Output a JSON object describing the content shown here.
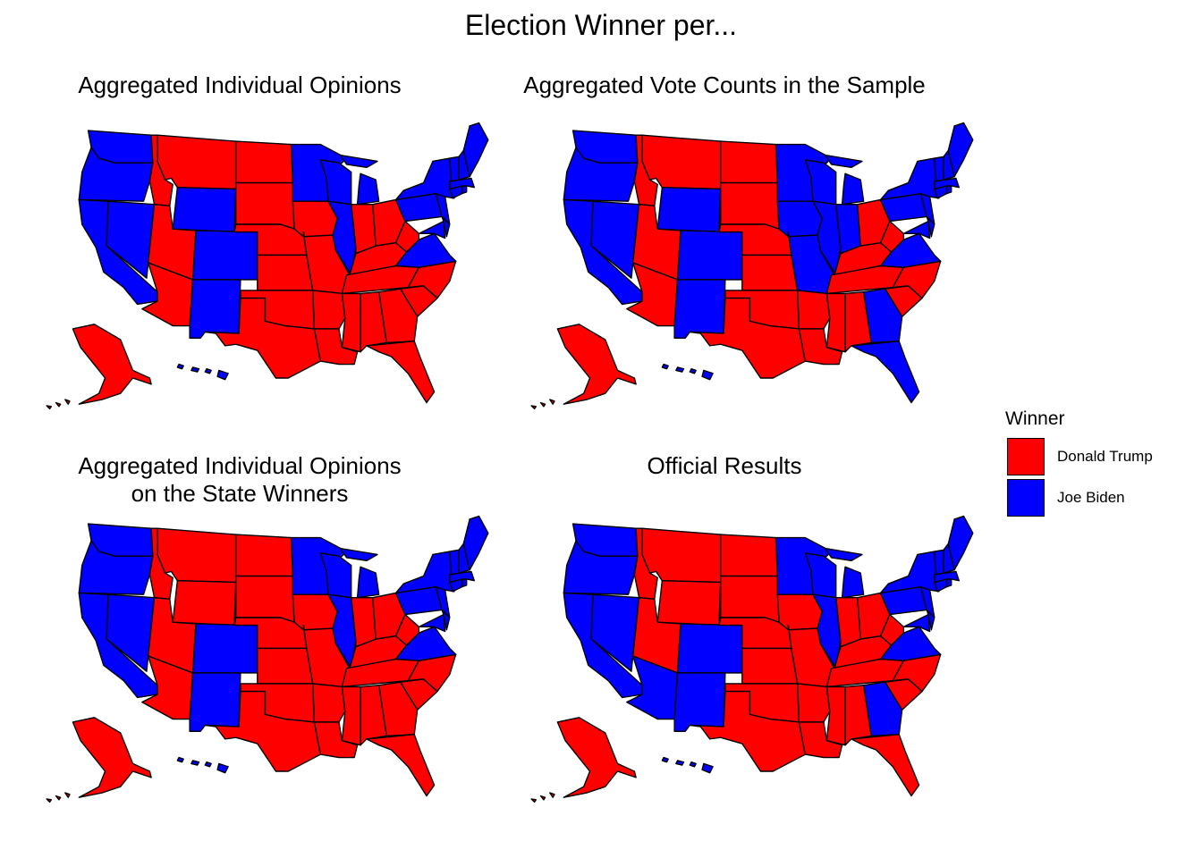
{
  "title": "Election Winner per...",
  "colors": {
    "Donald Trump": "#ff0000",
    "Joe Biden": "#0000ff"
  },
  "legend": {
    "title": "Winner",
    "items": [
      {
        "label": "Donald Trump",
        "color": "#ff0000"
      },
      {
        "label": "Joe Biden",
        "color": "#0000ff"
      }
    ]
  },
  "panels": [
    {
      "title": "Aggregated Individual Opinions",
      "biden_states": [
        "WA",
        "OR",
        "CA",
        "NV",
        "WY",
        "CO",
        "NM",
        "MN",
        "WI",
        "IL",
        "MI",
        "PA",
        "NY",
        "VT",
        "NH",
        "ME",
        "MA",
        "CT",
        "RI",
        "NJ",
        "DE",
        "MD",
        "VA",
        "HI"
      ]
    },
    {
      "title": "Aggregated Vote Counts in the Sample",
      "biden_states": [
        "WA",
        "OR",
        "CA",
        "NV",
        "WY",
        "CO",
        "NM",
        "MN",
        "WI",
        "IA",
        "MO",
        "IL",
        "MI",
        "IN",
        "PA",
        "NY",
        "VT",
        "NH",
        "ME",
        "MA",
        "CT",
        "RI",
        "NJ",
        "DE",
        "MD",
        "VA",
        "GA",
        "FL",
        "HI"
      ]
    },
    {
      "title": "Aggregated Individual Opinions\non the State Winners",
      "biden_states": [
        "WA",
        "OR",
        "CA",
        "NV",
        "CO",
        "NM",
        "MN",
        "WI",
        "IL",
        "MI",
        "PA",
        "NY",
        "VT",
        "NH",
        "ME",
        "MA",
        "CT",
        "RI",
        "NJ",
        "DE",
        "MD",
        "VA",
        "HI"
      ]
    },
    {
      "title": "Official Results",
      "biden_states": [
        "WA",
        "OR",
        "CA",
        "NV",
        "AZ",
        "CO",
        "NM",
        "MN",
        "WI",
        "IL",
        "MI",
        "PA",
        "NY",
        "VT",
        "NH",
        "ME",
        "MA",
        "CT",
        "RI",
        "NJ",
        "DE",
        "MD",
        "VA",
        "GA",
        "HI"
      ]
    }
  ]
}
